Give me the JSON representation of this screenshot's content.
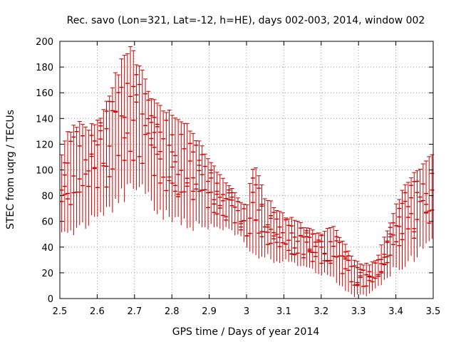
{
  "chart_data": {
    "type": "scatter",
    "title": "Rec. savo (Lon=321, Lat=-12, h=HE), days 002-003, 2014, window 002",
    "xlabel": "GPS time / Days of year 2014",
    "ylabel": "STEC from uqrg / TECUs",
    "xlim": [
      2.5,
      3.5
    ],
    "ylim": [
      0,
      200
    ],
    "x_ticks": [
      "2.5",
      "2.6",
      "2.7",
      "2.8",
      "2.9",
      "3",
      "3.1",
      "3.2",
      "3.3",
      "3.4",
      "3.5"
    ],
    "y_ticks": [
      "0",
      "20",
      "40",
      "60",
      "80",
      "100",
      "120",
      "140",
      "160",
      "180",
      "200"
    ],
    "grid": true,
    "series_color": "#cc0000",
    "error_bars": true,
    "envelope": [
      {
        "x": 2.5,
        "lo": 55,
        "hi": 110
      },
      {
        "x": 2.52,
        "lo": 58,
        "hi": 130
      },
      {
        "x": 2.55,
        "lo": 62,
        "hi": 140
      },
      {
        "x": 2.58,
        "lo": 65,
        "hi": 135
      },
      {
        "x": 2.6,
        "lo": 68,
        "hi": 140
      },
      {
        "x": 2.63,
        "lo": 75,
        "hi": 160
      },
      {
        "x": 2.66,
        "lo": 85,
        "hi": 185
      },
      {
        "x": 2.69,
        "lo": 92,
        "hi": 198
      },
      {
        "x": 2.72,
        "lo": 90,
        "hi": 180
      },
      {
        "x": 2.75,
        "lo": 80,
        "hi": 160
      },
      {
        "x": 2.78,
        "lo": 72,
        "hi": 150
      },
      {
        "x": 2.8,
        "lo": 68,
        "hi": 145
      },
      {
        "x": 2.83,
        "lo": 65,
        "hi": 140
      },
      {
        "x": 2.86,
        "lo": 62,
        "hi": 130
      },
      {
        "x": 2.89,
        "lo": 60,
        "hi": 115
      },
      {
        "x": 2.92,
        "lo": 58,
        "hi": 100
      },
      {
        "x": 2.95,
        "lo": 55,
        "hi": 90
      },
      {
        "x": 2.98,
        "lo": 52,
        "hi": 78
      },
      {
        "x": 3.0,
        "lo": 40,
        "hi": 72
      },
      {
        "x": 3.02,
        "lo": 38,
        "hi": 112
      },
      {
        "x": 3.05,
        "lo": 35,
        "hi": 80
      },
      {
        "x": 3.08,
        "lo": 33,
        "hi": 72
      },
      {
        "x": 3.11,
        "lo": 30,
        "hi": 65
      },
      {
        "x": 3.14,
        "lo": 28,
        "hi": 60
      },
      {
        "x": 3.17,
        "lo": 25,
        "hi": 55
      },
      {
        "x": 3.2,
        "lo": 22,
        "hi": 52
      },
      {
        "x": 3.23,
        "lo": 18,
        "hi": 58
      },
      {
        "x": 3.26,
        "lo": 10,
        "hi": 45
      },
      {
        "x": 3.29,
        "lo": 5,
        "hi": 32
      },
      {
        "x": 3.31,
        "lo": 3,
        "hi": 28
      },
      {
        "x": 3.33,
        "lo": 5,
        "hi": 27
      },
      {
        "x": 3.35,
        "lo": 10,
        "hi": 32
      },
      {
        "x": 3.37,
        "lo": 18,
        "hi": 50
      },
      {
        "x": 3.39,
        "lo": 24,
        "hi": 65
      },
      {
        "x": 3.41,
        "lo": 28,
        "hi": 82
      },
      {
        "x": 3.43,
        "lo": 32,
        "hi": 95
      },
      {
        "x": 3.46,
        "lo": 40,
        "hi": 100
      },
      {
        "x": 3.48,
        "lo": 45,
        "hi": 110
      },
      {
        "x": 3.5,
        "lo": 50,
        "hi": 120
      }
    ]
  }
}
